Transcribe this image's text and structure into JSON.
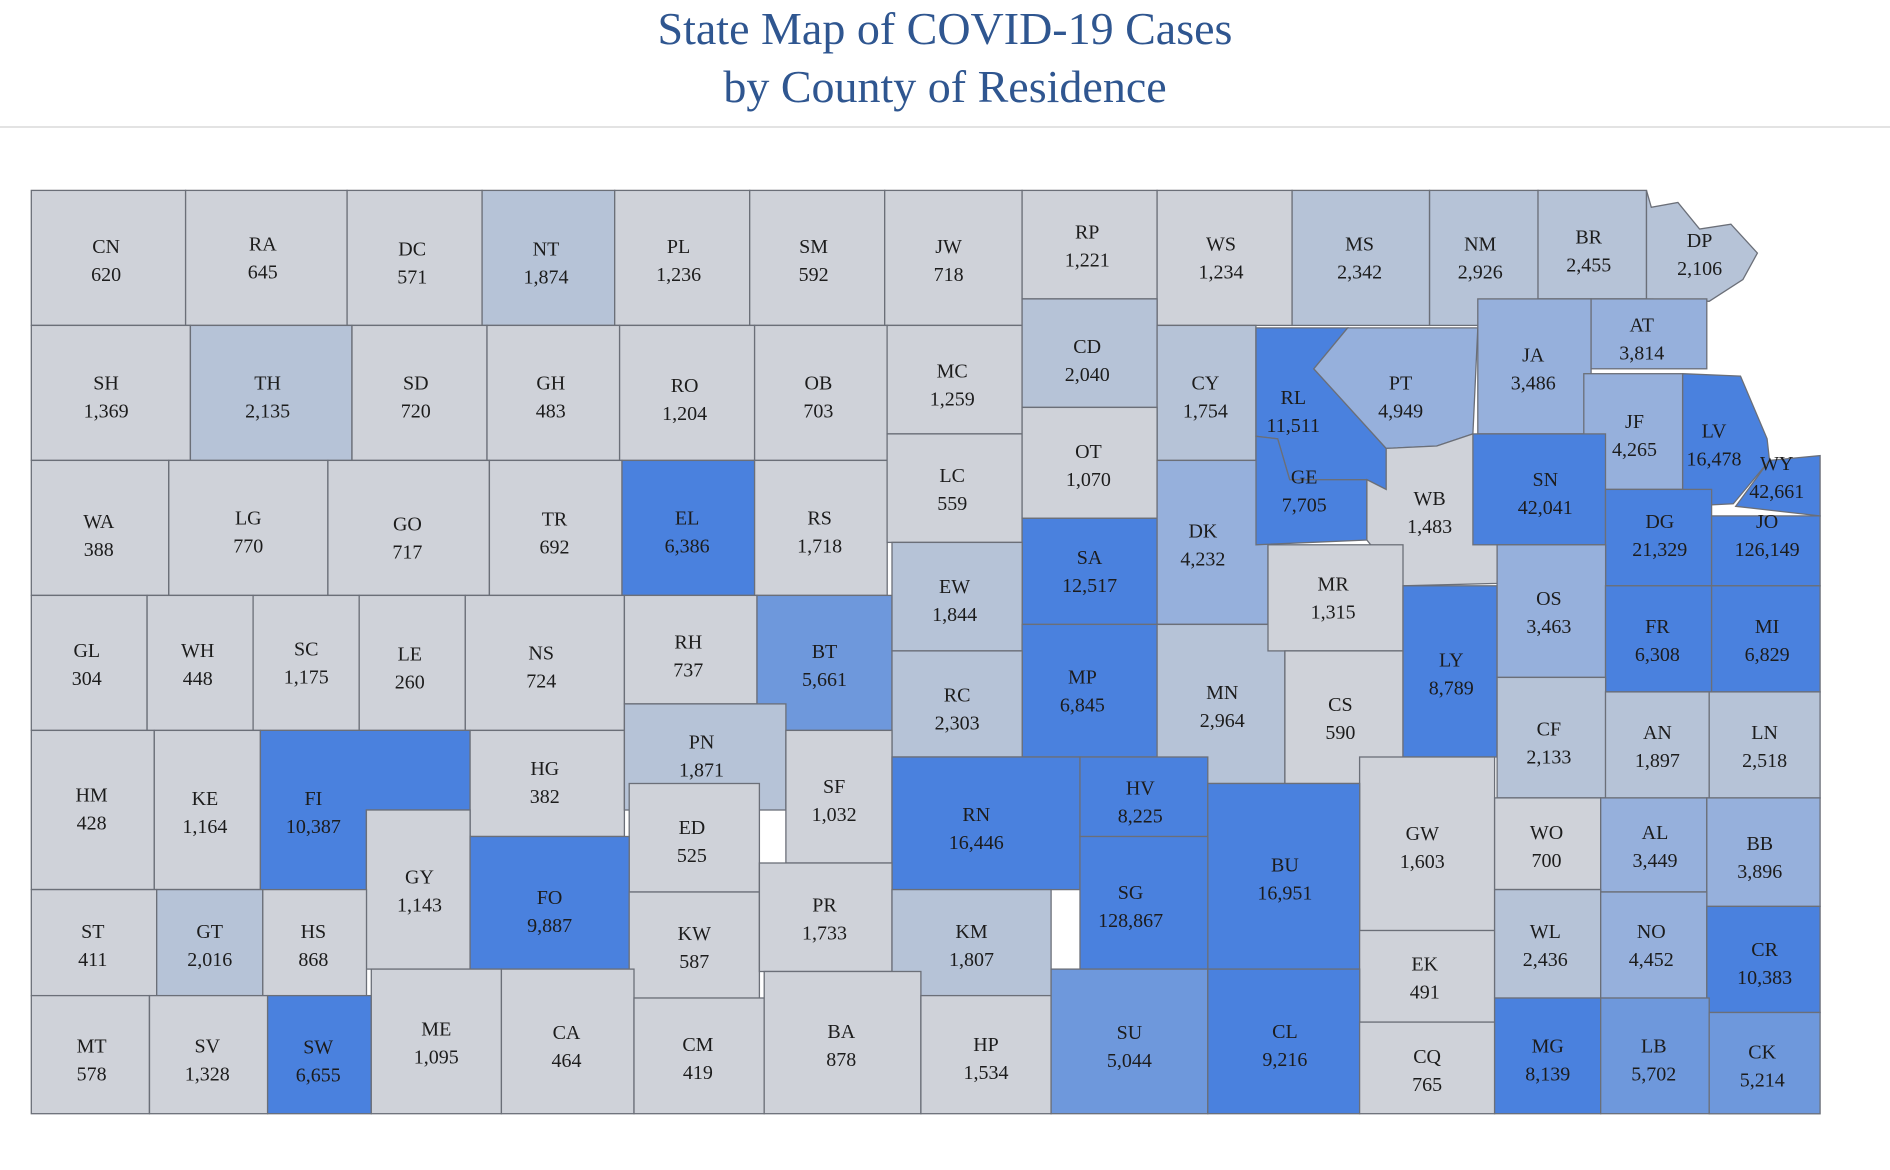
{
  "title": {
    "line1": "State Map of COVID-19 Cases",
    "line2": "by County of Residence"
  },
  "colors": {
    "low": "#cfd2d9",
    "mid_low": "#b6c3d7",
    "mid": "#96b0dc",
    "mid_high": "#6e98dc",
    "high": "#4a81de",
    "border": "#6b6f78",
    "title": "#2f5690"
  },
  "counties": [
    {
      "code": "CN",
      "cases": "620"
    },
    {
      "code": "RA",
      "cases": "645"
    },
    {
      "code": "DC",
      "cases": "571"
    },
    {
      "code": "NT",
      "cases": "1,874"
    },
    {
      "code": "PL",
      "cases": "1,236"
    },
    {
      "code": "SM",
      "cases": "592"
    },
    {
      "code": "JW",
      "cases": "718"
    },
    {
      "code": "RP",
      "cases": "1,221"
    },
    {
      "code": "WS",
      "cases": "1,234"
    },
    {
      "code": "MS",
      "cases": "2,342"
    },
    {
      "code": "NM",
      "cases": "2,926"
    },
    {
      "code": "BR",
      "cases": "2,455"
    },
    {
      "code": "DP",
      "cases": "2,106"
    },
    {
      "code": "SH",
      "cases": "1,369"
    },
    {
      "code": "TH",
      "cases": "2,135"
    },
    {
      "code": "SD",
      "cases": "720"
    },
    {
      "code": "GH",
      "cases": "483"
    },
    {
      "code": "RO",
      "cases": "1,204"
    },
    {
      "code": "OB",
      "cases": "703"
    },
    {
      "code": "MC",
      "cases": "1,259"
    },
    {
      "code": "CD",
      "cases": "2,040"
    },
    {
      "code": "CY",
      "cases": "1,754"
    },
    {
      "code": "RL",
      "cases": "11,511"
    },
    {
      "code": "PT",
      "cases": "4,949"
    },
    {
      "code": "JA",
      "cases": "3,486"
    },
    {
      "code": "AT",
      "cases": "3,814"
    },
    {
      "code": "JF",
      "cases": "4,265"
    },
    {
      "code": "LV",
      "cases": "16,478"
    },
    {
      "code": "WY",
      "cases": "42,661"
    },
    {
      "code": "WA",
      "cases": "388"
    },
    {
      "code": "LG",
      "cases": "770"
    },
    {
      "code": "GO",
      "cases": "717"
    },
    {
      "code": "TR",
      "cases": "692"
    },
    {
      "code": "EL",
      "cases": "6,386"
    },
    {
      "code": "RS",
      "cases": "1,718"
    },
    {
      "code": "LC",
      "cases": "559"
    },
    {
      "code": "OT",
      "cases": "1,070"
    },
    {
      "code": "SA",
      "cases": "12,517"
    },
    {
      "code": "DK",
      "cases": "4,232"
    },
    {
      "code": "GE",
      "cases": "7,705"
    },
    {
      "code": "WB",
      "cases": "1,483"
    },
    {
      "code": "SN",
      "cases": "42,041"
    },
    {
      "code": "DG",
      "cases": "21,329"
    },
    {
      "code": "JO",
      "cases": "126,149"
    },
    {
      "code": "GL",
      "cases": "304"
    },
    {
      "code": "WH",
      "cases": "448"
    },
    {
      "code": "SC",
      "cases": "1,175"
    },
    {
      "code": "LE",
      "cases": "260"
    },
    {
      "code": "NS",
      "cases": "724"
    },
    {
      "code": "RH",
      "cases": "737"
    },
    {
      "code": "BT",
      "cases": "5,661"
    },
    {
      "code": "EW",
      "cases": "1,844"
    },
    {
      "code": "MP",
      "cases": "6,845"
    },
    {
      "code": "MN",
      "cases": "2,964"
    },
    {
      "code": "MR",
      "cases": "1,315"
    },
    {
      "code": "CS",
      "cases": "590"
    },
    {
      "code": "LY",
      "cases": "8,789"
    },
    {
      "code": "OS",
      "cases": "3,463"
    },
    {
      "code": "FR",
      "cases": "6,308"
    },
    {
      "code": "MI",
      "cases": "6,829"
    },
    {
      "code": "RC",
      "cases": "2,303"
    },
    {
      "code": "HM",
      "cases": "428"
    },
    {
      "code": "KE",
      "cases": "1,164"
    },
    {
      "code": "FI",
      "cases": "10,387"
    },
    {
      "code": "HG",
      "cases": "382"
    },
    {
      "code": "PN",
      "cases": "1,871"
    },
    {
      "code": "SF",
      "cases": "1,032"
    },
    {
      "code": "ED",
      "cases": "525"
    },
    {
      "code": "RN",
      "cases": "16,446"
    },
    {
      "code": "HV",
      "cases": "8,225"
    },
    {
      "code": "GW",
      "cases": "1,603"
    },
    {
      "code": "CF",
      "cases": "2,133"
    },
    {
      "code": "AN",
      "cases": "1,897"
    },
    {
      "code": "LN",
      "cases": "2,518"
    },
    {
      "code": "GY",
      "cases": "1,143"
    },
    {
      "code": "FO",
      "cases": "9,887"
    },
    {
      "code": "BU",
      "cases": "16,951"
    },
    {
      "code": "SG",
      "cases": "128,867"
    },
    {
      "code": "WO",
      "cases": "700"
    },
    {
      "code": "AL",
      "cases": "3,449"
    },
    {
      "code": "BB",
      "cases": "3,896"
    },
    {
      "code": "ST",
      "cases": "411"
    },
    {
      "code": "GT",
      "cases": "2,016"
    },
    {
      "code": "HS",
      "cases": "868"
    },
    {
      "code": "KW",
      "cases": "587"
    },
    {
      "code": "PR",
      "cases": "1,733"
    },
    {
      "code": "KM",
      "cases": "1,807"
    },
    {
      "code": "EK",
      "cases": "491"
    },
    {
      "code": "WL",
      "cases": "2,436"
    },
    {
      "code": "NO",
      "cases": "4,452"
    },
    {
      "code": "CR",
      "cases": "10,383"
    },
    {
      "code": "MT",
      "cases": "578"
    },
    {
      "code": "SV",
      "cases": "1,328"
    },
    {
      "code": "SW",
      "cases": "6,655"
    },
    {
      "code": "ME",
      "cases": "1,095"
    },
    {
      "code": "CA",
      "cases": "464"
    },
    {
      "code": "CM",
      "cases": "419"
    },
    {
      "code": "BA",
      "cases": "878"
    },
    {
      "code": "HP",
      "cases": "1,534"
    },
    {
      "code": "SU",
      "cases": "5,044"
    },
    {
      "code": "CL",
      "cases": "9,216"
    },
    {
      "code": "CQ",
      "cases": "765"
    },
    {
      "code": "MG",
      "cases": "8,139"
    },
    {
      "code": "LB",
      "cases": "5,702"
    },
    {
      "code": "CK",
      "cases": "5,214"
    }
  ]
}
